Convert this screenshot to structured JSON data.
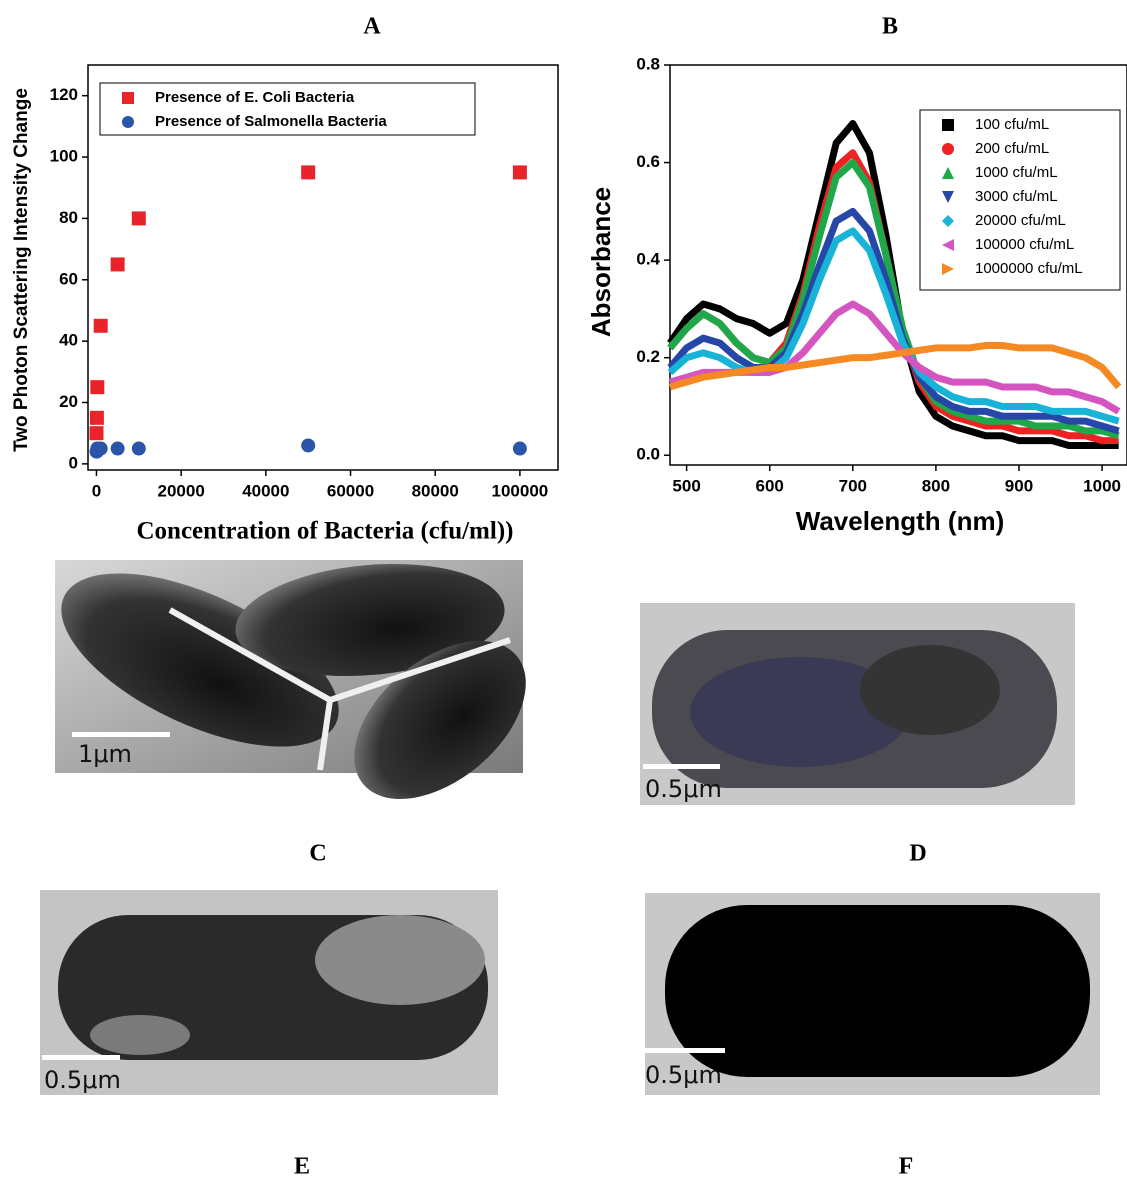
{
  "chart_data": [
    {
      "type": "scatter",
      "panel": "A",
      "ylabel": "Two Photon Scattering Intensity Change",
      "xlabel": "Concentration of Bacteria (cfu/ml))",
      "xlim": [
        -2000,
        109000
      ],
      "xticks": [
        0,
        20000,
        40000,
        60000,
        80000,
        100000
      ],
      "ylim": [
        -2,
        130
      ],
      "yticks": [
        0,
        20,
        40,
        60,
        80,
        100,
        120
      ],
      "series": [
        {
          "name": "Presence of E. Coli Bacteria",
          "color": "#e8242a",
          "marker": "square",
          "x": [
            10,
            100,
            200,
            1000,
            5000,
            10000,
            50000,
            100000
          ],
          "values": [
            10,
            15,
            25,
            45,
            65,
            80,
            95,
            95
          ]
        },
        {
          "name": "Presence of Salmonella Bacteria",
          "color": "#2a55a8",
          "marker": "circle",
          "x": [
            10,
            100,
            200,
            1000,
            5000,
            10000,
            50000,
            100000
          ],
          "values": [
            4,
            4,
            5,
            5,
            5,
            5,
            6,
            5
          ]
        }
      ]
    },
    {
      "type": "line",
      "panel": "B",
      "ylabel": "Absorbance",
      "xlabel": "Wavelength (nm)",
      "xlim": [
        480,
        1030
      ],
      "xticks": [
        500,
        600,
        700,
        800,
        900,
        1000
      ],
      "ylim": [
        -0.02,
        0.8
      ],
      "yticks": [
        {
          "value": 0,
          "label": "0.0"
        },
        0.2,
        0.4,
        0.6,
        0.8
      ],
      "x": [
        480,
        500,
        520,
        540,
        560,
        580,
        600,
        620,
        640,
        660,
        680,
        700,
        720,
        740,
        760,
        780,
        800,
        820,
        840,
        860,
        880,
        900,
        920,
        940,
        960,
        980,
        1000,
        1020
      ],
      "series": [
        {
          "name": "100 cfu/mL",
          "color": "#000000",
          "marker": "square",
          "values": [
            0.23,
            0.28,
            0.31,
            0.3,
            0.28,
            0.27,
            0.25,
            0.27,
            0.36,
            0.5,
            0.64,
            0.68,
            0.62,
            0.45,
            0.25,
            0.13,
            0.08,
            0.06,
            0.05,
            0.04,
            0.04,
            0.03,
            0.03,
            0.03,
            0.02,
            0.02,
            0.02,
            0.02
          ]
        },
        {
          "name": "200 cfu/mL",
          "color": "#ee2222",
          "marker": "circle",
          "values": [
            0.22,
            0.26,
            0.29,
            0.27,
            0.23,
            0.2,
            0.19,
            0.23,
            0.33,
            0.47,
            0.59,
            0.62,
            0.56,
            0.41,
            0.25,
            0.15,
            0.1,
            0.08,
            0.07,
            0.06,
            0.06,
            0.05,
            0.05,
            0.05,
            0.04,
            0.04,
            0.03,
            0.03
          ]
        },
        {
          "name": "1000 cfu/mL",
          "color": "#1fa84a",
          "marker": "triangle-up",
          "values": [
            0.22,
            0.26,
            0.29,
            0.27,
            0.23,
            0.2,
            0.19,
            0.22,
            0.32,
            0.45,
            0.57,
            0.6,
            0.55,
            0.41,
            0.26,
            0.16,
            0.11,
            0.09,
            0.08,
            0.07,
            0.07,
            0.07,
            0.06,
            0.06,
            0.06,
            0.05,
            0.05,
            0.04
          ]
        },
        {
          "name": "3000 cfu/mL",
          "color": "#2747a8",
          "marker": "triangle-down",
          "values": [
            0.18,
            0.22,
            0.24,
            0.23,
            0.2,
            0.18,
            0.18,
            0.21,
            0.29,
            0.39,
            0.48,
            0.5,
            0.46,
            0.36,
            0.24,
            0.16,
            0.12,
            0.1,
            0.09,
            0.09,
            0.08,
            0.08,
            0.08,
            0.08,
            0.07,
            0.07,
            0.06,
            0.05
          ]
        },
        {
          "name": "20000 cfu/mL",
          "color": "#18b4d8",
          "marker": "diamond",
          "values": [
            0.17,
            0.2,
            0.21,
            0.2,
            0.18,
            0.17,
            0.17,
            0.2,
            0.27,
            0.36,
            0.44,
            0.46,
            0.42,
            0.33,
            0.23,
            0.17,
            0.14,
            0.12,
            0.11,
            0.11,
            0.1,
            0.1,
            0.1,
            0.09,
            0.09,
            0.09,
            0.08,
            0.07
          ]
        },
        {
          "name": "100000 cfu/mL",
          "color": "#d555c0",
          "marker": "triangle-left",
          "values": [
            0.15,
            0.16,
            0.17,
            0.17,
            0.17,
            0.17,
            0.17,
            0.18,
            0.21,
            0.25,
            0.29,
            0.31,
            0.29,
            0.25,
            0.21,
            0.18,
            0.16,
            0.15,
            0.15,
            0.15,
            0.14,
            0.14,
            0.14,
            0.13,
            0.13,
            0.12,
            0.11,
            0.09
          ]
        },
        {
          "name": "1000000 cfu/mL",
          "color": "#f58a25",
          "marker": "triangle-right",
          "values": [
            0.14,
            0.15,
            0.16,
            0.165,
            0.17,
            0.175,
            0.18,
            0.18,
            0.185,
            0.19,
            0.195,
            0.2,
            0.2,
            0.205,
            0.21,
            0.215,
            0.22,
            0.22,
            0.22,
            0.225,
            0.225,
            0.22,
            0.22,
            0.22,
            0.21,
            0.2,
            0.18,
            0.14
          ]
        }
      ]
    }
  ],
  "panels": [
    {
      "label": "C",
      "scale_bar": "1μm"
    },
    {
      "label": "D",
      "scale_bar": "0.5μm"
    },
    {
      "label": "E",
      "scale_bar": "0.5μm"
    },
    {
      "label": "F",
      "scale_bar": "0.5μm"
    }
  ]
}
